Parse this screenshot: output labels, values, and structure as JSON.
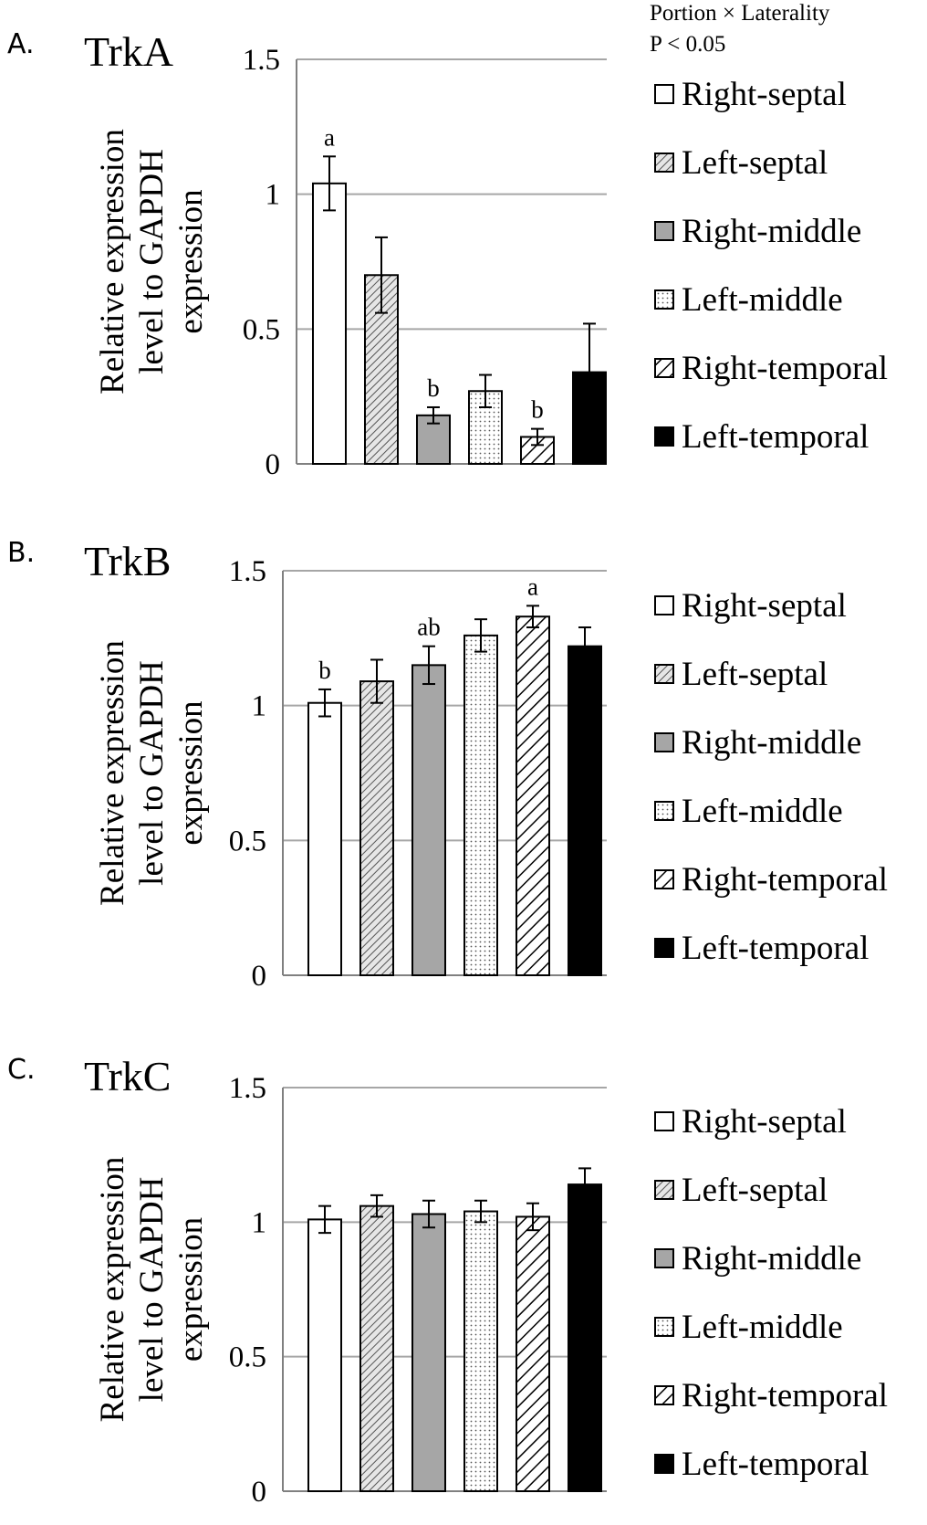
{
  "note": {
    "line1": "Portion × Laterality",
    "line2": "P < 0.05"
  },
  "series_styles": [
    {
      "name": "Right-septal",
      "fill": "#ffffff",
      "pattern": "none"
    },
    {
      "name": "Left-septal",
      "fill": "#d9d9d9",
      "pattern": "diag-fine"
    },
    {
      "name": "Right-middle",
      "fill": "#a6a6a6",
      "pattern": "none"
    },
    {
      "name": "Left-middle",
      "fill": "#ffffff",
      "pattern": "dots"
    },
    {
      "name": "Right-temporal",
      "fill": "#ffffff",
      "pattern": "diag-wide"
    },
    {
      "name": "Left-temporal",
      "fill": "#000000",
      "pattern": "none"
    }
  ],
  "chart_data": [
    {
      "type": "bar",
      "panel": "A.",
      "title": "TrkA",
      "ylabel": [
        "Relative expression",
        "level to GAPDH",
        "expression"
      ],
      "ylim": [
        0,
        1.5
      ],
      "yticks": [
        "0",
        "0.5",
        "1",
        "1.5"
      ],
      "grid": true,
      "legend_position": "right",
      "categories": [
        "Right-septal",
        "Left-septal",
        "Right-middle",
        "Left-middle",
        "Right-temporal",
        "Left-temporal"
      ],
      "values": [
        1.04,
        0.7,
        0.18,
        0.27,
        0.1,
        0.34
      ],
      "errors": [
        0.1,
        0.14,
        0.03,
        0.06,
        0.03,
        0.18
      ],
      "annotations": [
        "a",
        "",
        "b",
        "",
        "b",
        ""
      ]
    },
    {
      "type": "bar",
      "panel": "B.",
      "title": "TrkB",
      "ylabel": [
        "Relative expression",
        "level to GAPDH",
        "expression"
      ],
      "ylim": [
        0,
        1.5
      ],
      "yticks": [
        "0",
        "0.5",
        "1",
        "1.5"
      ],
      "grid": true,
      "legend_position": "right",
      "categories": [
        "Right-septal",
        "Left-septal",
        "Right-middle",
        "Left-middle",
        "Right-temporal",
        "Left-temporal"
      ],
      "values": [
        1.01,
        1.09,
        1.15,
        1.26,
        1.33,
        1.22
      ],
      "errors": [
        0.05,
        0.08,
        0.07,
        0.06,
        0.04,
        0.07
      ],
      "annotations": [
        "b",
        "",
        "ab",
        "",
        "a",
        ""
      ]
    },
    {
      "type": "bar",
      "panel": "C.",
      "title": "TrkC",
      "ylabel": [
        "Relative expression",
        "level to GAPDH",
        "expression"
      ],
      "ylim": [
        0,
        1.5
      ],
      "yticks": [
        "0",
        "0.5",
        "1",
        "1.5"
      ],
      "grid": true,
      "legend_position": "right",
      "categories": [
        "Right-septal",
        "Left-septal",
        "Right-middle",
        "Left-middle",
        "Right-temporal",
        "Left-temporal"
      ],
      "values": [
        1.01,
        1.06,
        1.03,
        1.04,
        1.02,
        1.14
      ],
      "errors": [
        0.05,
        0.04,
        0.05,
        0.04,
        0.05,
        0.06
      ],
      "annotations": [
        "",
        "",
        "",
        "",
        "",
        ""
      ]
    }
  ]
}
